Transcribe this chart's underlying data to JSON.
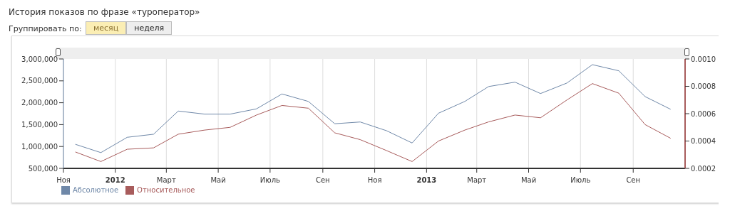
{
  "chart_data": {
    "type": "line",
    "title": "История показов по фразе «туроператор»",
    "annotations": [
      "Группировать по:",
      "месяц",
      "неделя"
    ],
    "x": [
      "2011-11-15",
      "2011-12-15",
      "2012-01-15",
      "2012-02-15",
      "2012-03-15",
      "2012-04-15",
      "2012-05-15",
      "2012-06-15",
      "2012-07-15",
      "2012-08-15",
      "2012-09-15",
      "2012-10-15",
      "2012-11-15",
      "2012-12-15",
      "2013-01-15",
      "2013-02-15",
      "2013-03-15",
      "2013-04-15",
      "2013-05-15",
      "2013-06-15",
      "2013-07-15",
      "2013-08-15",
      "2013-09-15",
      "2013-10-15"
    ],
    "xlim": [
      "2011-11-01",
      "2013-11-01"
    ],
    "xticks": [
      {
        "value": "2011-11-01",
        "label": "Ноя"
      },
      {
        "value": "2012-01-01",
        "label": "2012"
      },
      {
        "value": "2012-03-01",
        "label": "Март"
      },
      {
        "value": "2012-05-01",
        "label": "Май"
      },
      {
        "value": "2012-07-01",
        "label": "Июль"
      },
      {
        "value": "2012-09-01",
        "label": "Сен"
      },
      {
        "value": "2012-11-01",
        "label": "Ноя"
      },
      {
        "value": "2013-01-01",
        "label": "2013"
      },
      {
        "value": "2013-03-01",
        "label": "Март"
      },
      {
        "value": "2013-05-01",
        "label": "Май"
      },
      {
        "value": "2013-07-01",
        "label": "Июль"
      },
      {
        "value": "2013-09-01",
        "label": "Сен"
      }
    ],
    "ylim": [
      500000,
      3000000
    ],
    "yticks": [
      {
        "value": 500000,
        "label": "500,000"
      },
      {
        "value": 1000000,
        "label": "1,000,000"
      },
      {
        "value": 1500000,
        "label": "1,500,000"
      },
      {
        "value": 2000000,
        "label": "2,000,000"
      },
      {
        "value": 2500000,
        "label": "2,500,000"
      },
      {
        "value": 3000000,
        "label": "3,000,000"
      }
    ],
    "y2lim": [
      0.0002,
      0.001
    ],
    "y2ticks": [
      {
        "value": 0.0002,
        "label": "0.0002"
      },
      {
        "value": 0.0004,
        "label": "0.0004"
      },
      {
        "value": 0.0006,
        "label": "0.0006"
      },
      {
        "value": 0.0008,
        "label": "0.0008"
      },
      {
        "value": 0.001,
        "label": "0.0010"
      }
    ],
    "series": [
      {
        "name": "Абсолютное",
        "color": "#6f88a8",
        "values": [
          1050000,
          860000,
          1210000,
          1280000,
          1810000,
          1740000,
          1740000,
          1860000,
          2200000,
          2030000,
          1520000,
          1560000,
          1360000,
          1080000,
          1760000,
          2030000,
          2370000,
          2470000,
          2210000,
          2450000,
          2870000,
          2730000,
          2140000,
          1850000
        ]
      },
      {
        "name": "Относительное",
        "color": "#a85c5c",
        "axis": "y2",
        "values": [
          0.00032,
          0.00025,
          0.00034,
          0.00035,
          0.00045,
          0.00048,
          0.0005,
          0.00059,
          0.00066,
          0.00064,
          0.00046,
          0.00041,
          0.00033,
          0.00025,
          0.0004,
          0.00048,
          0.00054,
          0.00059,
          0.00057,
          0.0007,
          0.00082,
          0.00075,
          0.00052,
          0.00042
        ]
      }
    ],
    "grid": "x",
    "legend": "bottom left",
    "marker": "none",
    "line_style": "solid"
  }
}
